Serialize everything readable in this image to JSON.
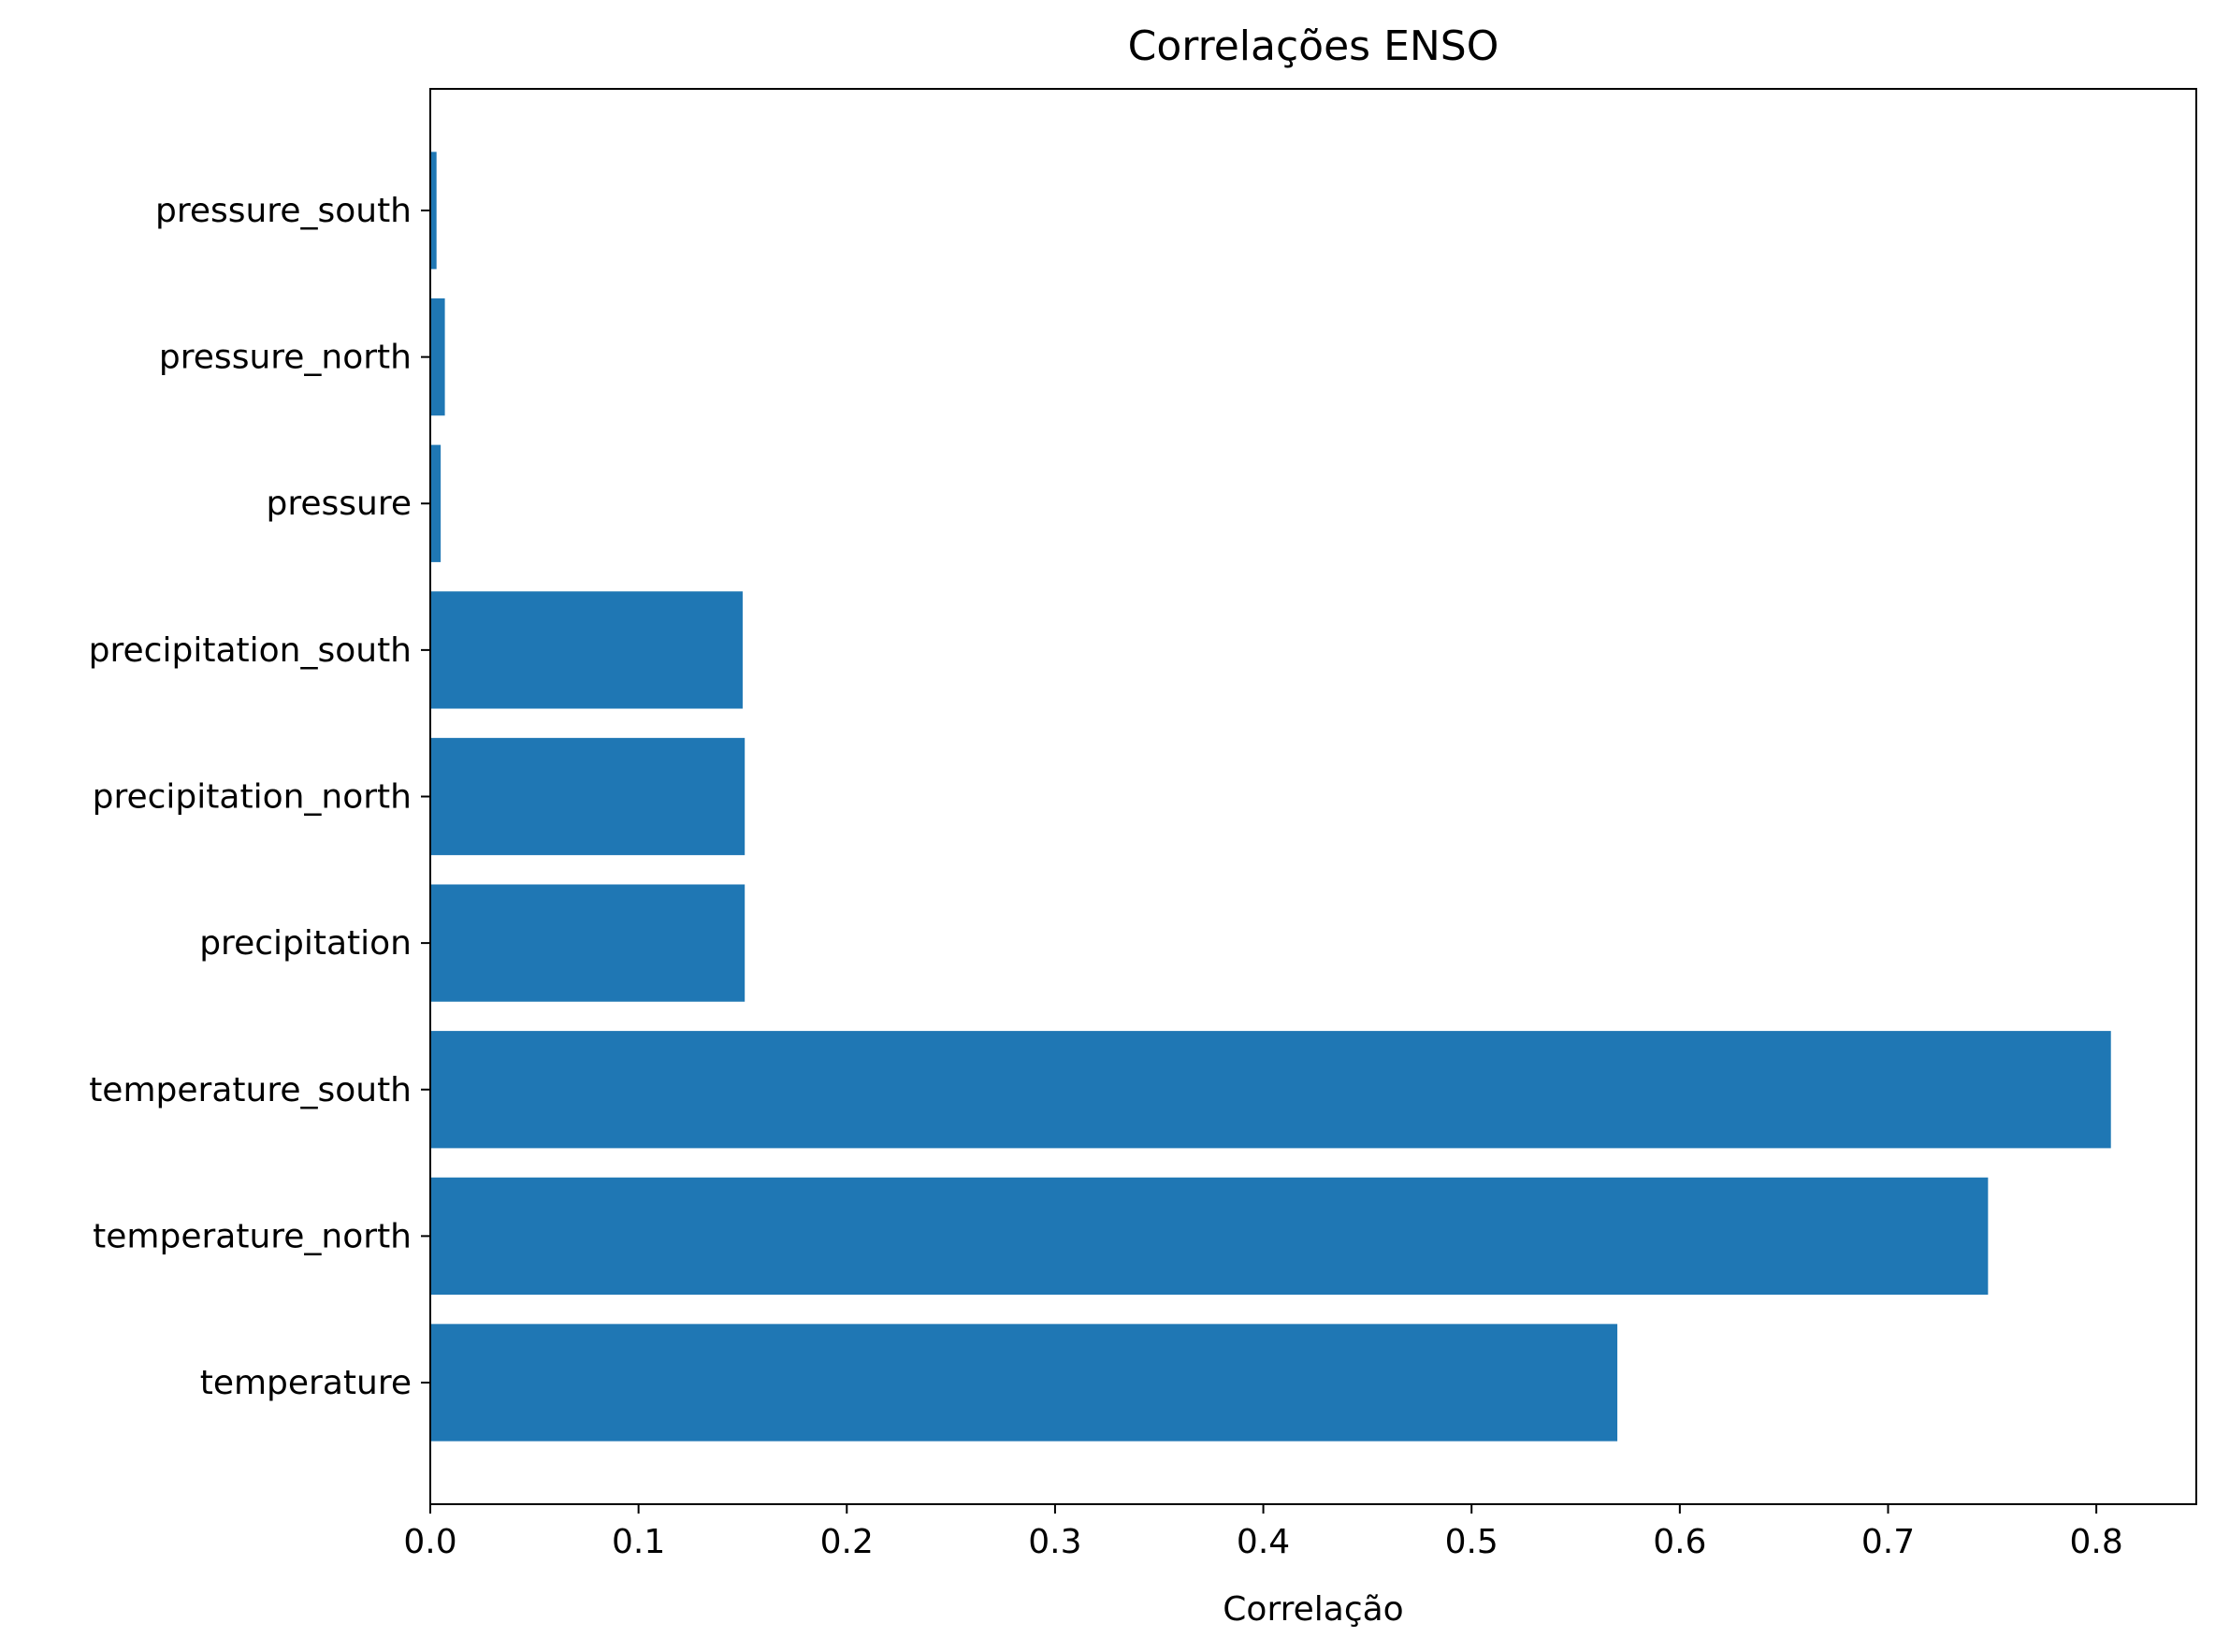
{
  "chart_data": {
    "type": "bar",
    "orientation": "horizontal",
    "title": "Correlações ENSO",
    "xlabel": "Correlação",
    "ylabel": "",
    "categories": [
      "temperature",
      "temperature_north",
      "temperature_south",
      "precipitation",
      "precipitation_north",
      "precipitation_south",
      "pressure",
      "pressure_north",
      "pressure_south"
    ],
    "values": [
      0.57,
      0.748,
      0.807,
      0.151,
      0.151,
      0.15,
      0.005,
      0.007,
      0.003
    ],
    "xlim": [
      0.0,
      0.848
    ],
    "xticks": [
      "0.0",
      "0.1",
      "0.2",
      "0.3",
      "0.4",
      "0.5",
      "0.6",
      "0.7",
      "0.8"
    ],
    "grid": false,
    "legend": "none",
    "bar_color": "#1f77b4"
  }
}
